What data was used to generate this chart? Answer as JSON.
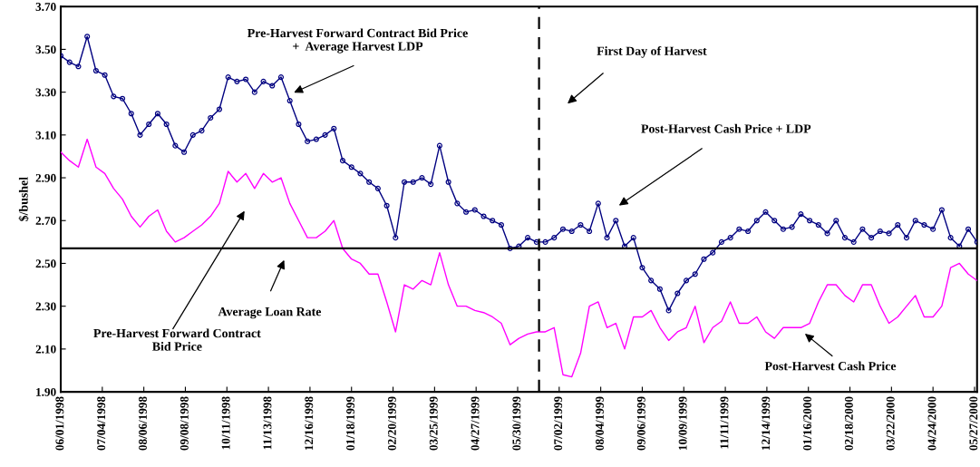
{
  "chart_data": {
    "type": "line",
    "ylabel": "$/bushel",
    "x": [
      "1998-06-01",
      "1998-06-08",
      "1998-06-15",
      "1998-06-22",
      "1998-06-29",
      "1998-07-06",
      "1998-07-13",
      "1998-07-20",
      "1998-07-27",
      "1998-08-03",
      "1998-08-10",
      "1998-08-17",
      "1998-08-24",
      "1998-08-31",
      "1998-09-07",
      "1998-09-14",
      "1998-09-21",
      "1998-09-28",
      "1998-10-05",
      "1998-10-12",
      "1998-10-19",
      "1998-10-26",
      "1998-11-02",
      "1998-11-09",
      "1998-11-16",
      "1998-11-23",
      "1998-11-30",
      "1998-12-07",
      "1998-12-14",
      "1998-12-21",
      "1998-12-28",
      "1999-01-04",
      "1999-01-11",
      "1999-01-18",
      "1999-01-25",
      "1999-02-01",
      "1999-02-08",
      "1999-02-15",
      "1999-02-22",
      "1999-03-01",
      "1999-03-08",
      "1999-03-15",
      "1999-03-22",
      "1999-03-29",
      "1999-04-05",
      "1999-04-12",
      "1999-04-19",
      "1999-04-26",
      "1999-05-03",
      "1999-05-10",
      "1999-05-17",
      "1999-05-24",
      "1999-05-31",
      "1999-06-07",
      "1999-06-14",
      "1999-06-21",
      "1999-06-28",
      "1999-07-05",
      "1999-07-12",
      "1999-07-19",
      "1999-07-26",
      "1999-08-02",
      "1999-08-09",
      "1999-08-16",
      "1999-08-23",
      "1999-08-30",
      "1999-09-06",
      "1999-09-13",
      "1999-09-20",
      "1999-09-27",
      "1999-10-04",
      "1999-10-11",
      "1999-10-18",
      "1999-10-25",
      "1999-11-01",
      "1999-11-08",
      "1999-11-15",
      "1999-11-22",
      "1999-11-29",
      "1999-12-06",
      "1999-12-13",
      "1999-12-20",
      "1999-12-27",
      "2000-01-03",
      "2000-01-10",
      "2000-01-17",
      "2000-01-24",
      "2000-01-31",
      "2000-02-07",
      "2000-02-14",
      "2000-02-21",
      "2000-02-28",
      "2000-03-06",
      "2000-03-13",
      "2000-03-20",
      "2000-03-27",
      "2000-04-03",
      "2000-04-10",
      "2000-04-17",
      "2000-04-24",
      "2000-05-01",
      "2000-05-08",
      "2000-05-15",
      "2000-05-22",
      "2000-05-29"
    ],
    "series": [
      {
        "color": "#000080",
        "marker": "circle",
        "values": [
          3.47,
          3.44,
          3.42,
          3.56,
          3.4,
          3.38,
          3.28,
          3.27,
          3.2,
          3.1,
          3.15,
          3.2,
          3.15,
          3.05,
          3.02,
          3.1,
          3.12,
          3.18,
          3.22,
          3.37,
          3.35,
          3.36,
          3.3,
          3.35,
          3.33,
          3.37,
          3.26,
          3.15,
          3.07,
          3.08,
          3.1,
          3.13,
          2.98,
          2.95,
          2.92,
          2.88,
          2.85,
          2.77,
          2.62,
          2.88,
          2.88,
          2.9,
          2.87,
          3.05,
          2.88,
          2.78,
          2.74,
          2.75,
          2.72,
          2.7,
          2.68,
          2.57,
          2.58,
          2.62,
          2.6,
          2.6,
          2.62,
          2.66,
          2.65,
          2.68,
          2.65,
          2.78,
          2.62,
          2.7,
          2.58,
          2.62,
          2.48,
          2.42,
          2.38,
          2.28,
          2.36,
          2.42,
          2.45,
          2.52,
          2.55,
          2.6,
          2.62,
          2.66,
          2.65,
          2.7,
          2.74,
          2.7,
          2.66,
          2.67,
          2.73,
          2.7,
          2.68,
          2.64,
          2.7,
          2.62,
          2.6,
          2.66,
          2.62,
          2.65,
          2.64,
          2.68,
          2.62,
          2.7,
          2.68,
          2.66,
          2.75,
          2.62,
          2.58,
          2.66,
          2.6
        ]
      },
      {
        "color": "#ff00ff",
        "values": [
          3.02,
          2.98,
          2.95,
          3.08,
          2.95,
          2.92,
          2.85,
          2.8,
          2.72,
          2.67,
          2.72,
          2.75,
          2.65,
          2.6,
          2.62,
          2.65,
          2.68,
          2.72,
          2.78,
          2.93,
          2.88,
          2.92,
          2.85,
          2.92,
          2.88,
          2.9,
          2.78,
          2.7,
          2.62,
          2.62,
          2.65,
          2.7,
          2.57,
          2.52,
          2.5,
          2.45,
          2.45,
          2.32,
          2.18,
          2.4,
          2.38,
          2.42,
          2.4,
          2.55,
          2.4,
          2.3,
          2.3,
          2.28,
          2.27,
          2.25,
          2.22,
          2.12,
          2.15,
          2.17,
          2.18,
          2.18,
          2.2,
          1.98,
          1.97,
          2.08,
          2.3,
          2.32,
          2.2,
          2.22,
          2.1,
          2.25,
          2.25,
          2.28,
          2.2,
          2.14,
          2.18,
          2.2,
          2.3,
          2.13,
          2.2,
          2.23,
          2.32,
          2.22,
          2.22,
          2.25,
          2.18,
          2.15,
          2.2,
          2.2,
          2.2,
          2.22,
          2.32,
          2.4,
          2.4,
          2.35,
          2.32,
          2.4,
          2.4,
          2.3,
          2.22,
          2.25,
          2.3,
          2.35,
          2.25,
          2.25,
          2.3,
          2.48,
          2.5,
          2.45,
          2.42
        ]
      }
    ],
    "xlim": [
      "1998-06-01",
      "2000-05-29"
    ],
    "xticks": [
      {
        "value": "1998-06-01",
        "label": "06/01/1998"
      },
      {
        "value": "1998-07-04",
        "label": "07/04/1998"
      },
      {
        "value": "1998-08-06",
        "label": "08/06/1998"
      },
      {
        "value": "1998-09-08",
        "label": "09/08/1998"
      },
      {
        "value": "1998-10-11",
        "label": "10/11/1998"
      },
      {
        "value": "1998-11-13",
        "label": "11/13/1998"
      },
      {
        "value": "1998-12-16",
        "label": "12/16/1998"
      },
      {
        "value": "1999-01-18",
        "label": "01/18/1999"
      },
      {
        "value": "1999-02-20",
        "label": "02/20/1999"
      },
      {
        "value": "1999-03-25",
        "label": "03/25/1999"
      },
      {
        "value": "1999-04-27",
        "label": "04/27/1999"
      },
      {
        "value": "1999-05-30",
        "label": "05/30/1999"
      },
      {
        "value": "1999-07-02",
        "label": "07/02/1999"
      },
      {
        "value": "1999-08-04",
        "label": "08/04/1999"
      },
      {
        "value": "1999-09-06",
        "label": "09/06/1999"
      },
      {
        "value": "1999-10-09",
        "label": "10/09/1999"
      },
      {
        "value": "1999-11-11",
        "label": "11/11/1999"
      },
      {
        "value": "1999-12-14",
        "label": "12/14/1999"
      },
      {
        "value": "2000-01-16",
        "label": "01/16/2000"
      },
      {
        "value": "2000-02-18",
        "label": "02/18/2000"
      },
      {
        "value": "2000-03-22",
        "label": "03/22/2000"
      },
      {
        "value": "2000-04-24",
        "label": "04/24/2000"
      },
      {
        "value": "2000-05-27",
        "label": "05/27/2000"
      }
    ],
    "ylim": [
      1.9,
      3.7
    ],
    "yticks": [
      {
        "value": 1.9,
        "label": "1.90"
      },
      {
        "value": 2.1,
        "label": "2.10"
      },
      {
        "value": 2.3,
        "label": "2.30"
      },
      {
        "value": 2.5,
        "label": "2.50"
      },
      {
        "value": 2.7,
        "label": "2.70"
      },
      {
        "value": 2.9,
        "label": "2.90"
      },
      {
        "value": 3.1,
        "label": "3.10"
      },
      {
        "value": 3.3,
        "label": "3.30"
      },
      {
        "value": 3.5,
        "label": "3.50"
      },
      {
        "value": 3.7,
        "label": "3.70"
      }
    ],
    "ref_lines": [
      {
        "axis": "y",
        "value": 2.57,
        "color": "#000000",
        "line_style": "solid"
      },
      {
        "axis": "x",
        "value": "1999-06-16",
        "color": "#000000",
        "line_style": "dashed"
      }
    ],
    "annotations": [
      "Pre-Harvest Forward Contract Bid Price\n+  Average Harvest LDP",
      "First Day of Harvest",
      "Post-Harvest Cash Price + LDP",
      "Pre-Harvest Forward Contract\nBid Price",
      "Average Loan Rate",
      "Post-Harvest Cash Price"
    ],
    "grid": false,
    "legend": false
  }
}
